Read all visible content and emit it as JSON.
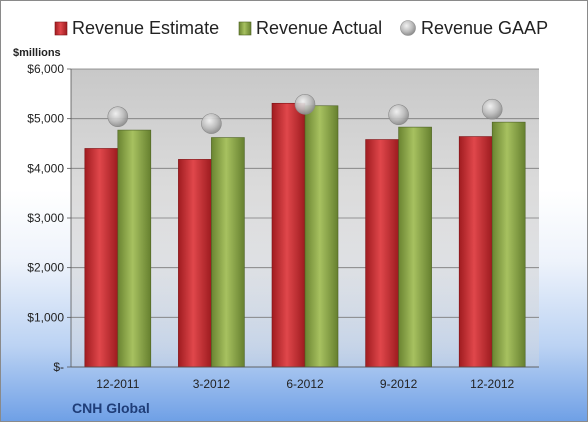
{
  "chart_data": {
    "type": "bar",
    "company": "CNH Global",
    "unit_label": "$millions",
    "categories": [
      "12-2011",
      "3-2012",
      "6-2012",
      "9-2012",
      "12-2012"
    ],
    "y_tick_labels": [
      "$-",
      "$1,000",
      "$2,000",
      "$3,000",
      "$4,000",
      "$5,000",
      "$6,000"
    ],
    "ylim": [
      0,
      6000
    ],
    "grid": true,
    "legend_position": "top",
    "series": [
      {
        "name": "Revenue Estimate",
        "type": "bar",
        "color": "#c0262a",
        "values": [
          4400,
          4180,
          5310,
          4580,
          4640
        ]
      },
      {
        "name": "Revenue Actual",
        "type": "bar",
        "color": "#7f9a3e",
        "values": [
          4770,
          4620,
          5260,
          4830,
          4930
        ]
      },
      {
        "name": "Revenue GAAP",
        "type": "marker",
        "color": "#b5b5b5",
        "values": [
          5040,
          4900,
          5290,
          5080,
          5190
        ]
      }
    ]
  }
}
